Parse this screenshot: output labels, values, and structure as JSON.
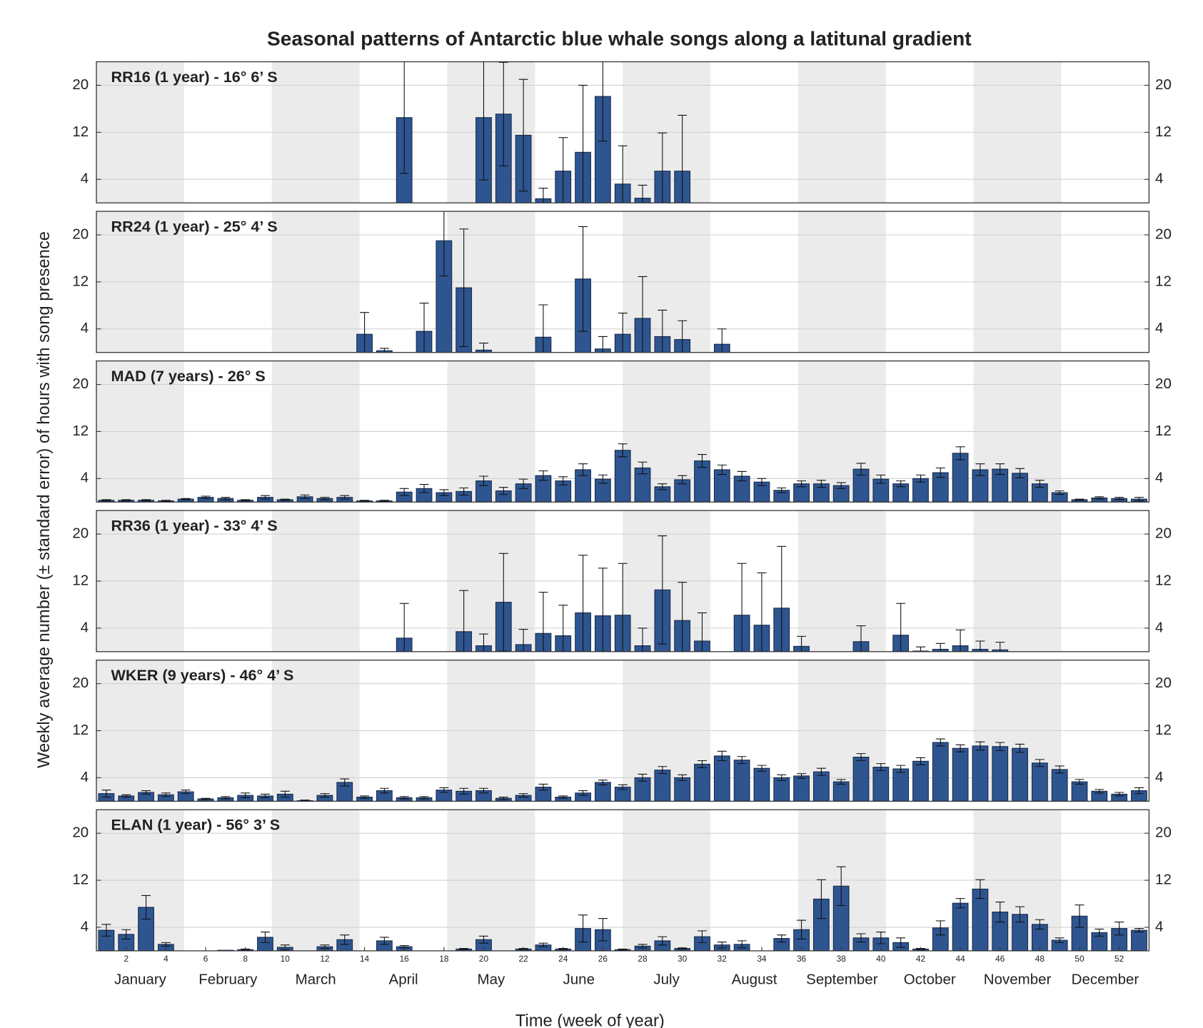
{
  "chart_data": {
    "type": "bar",
    "title": "Seasonal patterns of Antarctic blue whale songs along a latitunal gradient",
    "xlabel": "Time (week of year)",
    "ylabel": "Weekly average number (± standard error) of hours with song presence",
    "x": [
      1,
      2,
      3,
      4,
      5,
      6,
      7,
      8,
      9,
      10,
      11,
      12,
      13,
      14,
      15,
      16,
      17,
      18,
      19,
      20,
      21,
      22,
      23,
      24,
      25,
      26,
      27,
      28,
      29,
      30,
      31,
      32,
      33,
      34,
      35,
      36,
      37,
      38,
      39,
      40,
      41,
      42,
      43,
      44,
      45,
      46,
      47,
      48,
      49,
      50,
      51,
      52,
      53
    ],
    "xlim": [
      0.5,
      53.5
    ],
    "xticks": [
      2,
      4,
      6,
      8,
      10,
      12,
      14,
      16,
      18,
      20,
      22,
      24,
      26,
      28,
      30,
      32,
      34,
      36,
      38,
      40,
      42,
      44,
      46,
      48,
      50,
      52
    ],
    "months": [
      "January",
      "February",
      "March",
      "April",
      "May",
      "June",
      "July",
      "August",
      "September",
      "October",
      "November",
      "December"
    ],
    "ylim": [
      0,
      24
    ],
    "yticks": [
      4,
      12,
      20
    ],
    "grid": true,
    "color": "#2e5590",
    "panels": [
      {
        "label": "RR16 (1 year) - 16° 6’ S",
        "values": [
          0,
          0,
          0,
          0,
          0,
          0,
          0,
          0,
          0,
          0,
          0,
          0,
          0,
          0,
          0,
          14.5,
          0,
          0,
          0,
          14.5,
          15.1,
          11.5,
          0.7,
          5.4,
          8.6,
          18.1,
          3.2,
          0.8,
          5.4,
          5.4,
          0,
          0,
          0,
          0,
          0,
          0,
          0,
          0,
          0,
          0,
          0,
          0,
          0,
          0,
          0,
          0,
          0,
          0,
          0,
          0,
          0,
          0,
          0
        ],
        "errors": [
          0,
          0,
          0,
          0,
          0,
          0,
          0,
          0,
          0,
          0,
          0,
          0,
          0,
          0,
          0,
          9.5,
          0,
          0,
          0,
          10.6,
          8.8,
          9.5,
          1.8,
          5.7,
          11.4,
          7.6,
          6.5,
          2.2,
          6.5,
          9.5,
          0,
          0,
          0,
          0,
          0,
          0,
          0,
          0,
          0,
          0,
          0,
          0,
          0,
          0,
          0,
          0,
          0,
          0,
          0,
          0,
          0,
          0,
          0
        ]
      },
      {
        "label": "RR24 (1 year) - 25° 4’ S",
        "values": [
          0,
          0,
          0,
          0,
          0,
          0,
          0,
          0,
          0,
          0,
          0,
          0,
          0,
          3.1,
          0.3,
          0,
          3.6,
          19.0,
          11.0,
          0.4,
          0,
          0,
          2.6,
          0,
          12.5,
          0.6,
          3.1,
          5.8,
          2.7,
          2.2,
          0,
          1.4,
          0,
          0,
          0,
          0,
          0,
          0,
          0,
          0,
          0,
          0,
          0,
          0,
          0,
          0,
          0,
          0,
          0,
          0,
          0,
          0,
          0
        ],
        "errors": [
          0,
          0,
          0,
          0,
          0,
          0,
          0,
          0,
          0,
          0,
          0,
          0,
          0,
          3.7,
          0.4,
          0,
          4.8,
          6.0,
          10.0,
          1.2,
          0,
          0,
          5.5,
          0,
          8.9,
          2.1,
          3.6,
          7.1,
          4.5,
          3.2,
          0,
          2.6,
          0,
          0,
          0,
          0,
          0,
          0,
          0,
          0,
          0,
          0,
          0,
          0,
          0,
          0,
          0,
          0,
          0,
          0,
          0,
          0,
          0
        ]
      },
      {
        "label": "MAD (7 years) - 26° S",
        "values": [
          0.3,
          0.3,
          0.3,
          0.2,
          0.5,
          0.8,
          0.6,
          0.3,
          0.8,
          0.4,
          0.9,
          0.6,
          0.8,
          0.2,
          0.2,
          1.7,
          2.3,
          1.6,
          1.8,
          3.6,
          1.9,
          3.1,
          4.5,
          3.6,
          5.5,
          3.9,
          8.8,
          5.8,
          2.6,
          3.8,
          7.0,
          5.5,
          4.4,
          3.4,
          2.0,
          3.1,
          3.1,
          2.8,
          5.6,
          3.9,
          3.1,
          4.0,
          5.0,
          8.3,
          5.5,
          5.6,
          4.9,
          3.1,
          1.6,
          0.4,
          0.7,
          0.6,
          0.5
        ],
        "errors": [
          0.1,
          0.1,
          0.1,
          0.1,
          0.1,
          0.2,
          0.2,
          0.1,
          0.3,
          0.1,
          0.3,
          0.2,
          0.3,
          0.1,
          0.1,
          0.6,
          0.7,
          0.5,
          0.6,
          0.8,
          0.6,
          0.8,
          0.8,
          0.7,
          1.0,
          0.7,
          1.1,
          1.0,
          0.5,
          0.7,
          1.1,
          0.8,
          0.8,
          0.6,
          0.4,
          0.5,
          0.6,
          0.5,
          1.0,
          0.7,
          0.5,
          0.6,
          0.8,
          1.1,
          1.0,
          0.9,
          0.8,
          0.6,
          0.3,
          0.1,
          0.2,
          0.2,
          0.3
        ]
      },
      {
        "label": "RR36 (1 year) - 33° 4’ S",
        "values": [
          0,
          0,
          0,
          0,
          0,
          0,
          0,
          0,
          0,
          0,
          0,
          0,
          0,
          0,
          0,
          2.3,
          0,
          0,
          3.4,
          1.0,
          8.4,
          1.2,
          3.1,
          2.7,
          6.6,
          6.1,
          6.2,
          1.0,
          10.5,
          5.3,
          1.8,
          0,
          6.2,
          4.5,
          7.4,
          0.9,
          0,
          0,
          1.7,
          0,
          2.8,
          0.1,
          0.4,
          1.0,
          0.4,
          0.3,
          0,
          0,
          0,
          0,
          0,
          0,
          0
        ],
        "errors": [
          0,
          0,
          0,
          0,
          0,
          0,
          0,
          0,
          0,
          0,
          0,
          0,
          0,
          0,
          0,
          5.9,
          0,
          0,
          7.0,
          2.0,
          8.3,
          2.6,
          7.0,
          5.2,
          9.8,
          8.1,
          8.8,
          3.0,
          9.2,
          6.5,
          4.8,
          0,
          8.8,
          8.9,
          10.5,
          1.7,
          0,
          0,
          2.7,
          0,
          5.4,
          0.7,
          1.0,
          2.7,
          1.4,
          1.3,
          0,
          0,
          0,
          0,
          0,
          0,
          0
        ]
      },
      {
        "label": "WKER (9 years) - 46° 4’ S",
        "values": [
          1.3,
          0.9,
          1.5,
          1.1,
          1.6,
          0.4,
          0.6,
          1.0,
          0.9,
          1.2,
          0.1,
          1.0,
          3.2,
          0.7,
          1.8,
          0.6,
          0.6,
          1.9,
          1.7,
          1.8,
          0.5,
          1.0,
          2.4,
          0.7,
          1.4,
          3.2,
          2.4,
          4.0,
          5.3,
          4.0,
          6.3,
          7.7,
          7.0,
          5.6,
          4.0,
          4.3,
          5.0,
          3.3,
          7.5,
          5.8,
          5.5,
          6.8,
          10.0,
          9.0,
          9.4,
          9.3,
          9.0,
          6.5,
          5.4,
          3.3,
          1.7,
          1.2,
          1.8
        ],
        "errors": [
          0.6,
          0.2,
          0.3,
          0.3,
          0.3,
          0.1,
          0.2,
          0.4,
          0.3,
          0.5,
          0.1,
          0.3,
          0.6,
          0.2,
          0.4,
          0.2,
          0.2,
          0.4,
          0.5,
          0.4,
          0.2,
          0.3,
          0.5,
          0.2,
          0.4,
          0.4,
          0.4,
          0.6,
          0.6,
          0.5,
          0.6,
          0.8,
          0.6,
          0.5,
          0.5,
          0.4,
          0.6,
          0.4,
          0.6,
          0.6,
          0.6,
          0.6,
          0.6,
          0.6,
          0.7,
          0.7,
          0.7,
          0.6,
          0.6,
          0.4,
          0.3,
          0.3,
          0.5
        ]
      },
      {
        "label": "ELAN (1 year) - 56° 3’ S",
        "values": [
          3.5,
          2.8,
          7.4,
          1.1,
          0,
          0,
          0.1,
          0.2,
          2.3,
          0.6,
          0,
          0.7,
          1.9,
          0,
          1.7,
          0.7,
          0,
          0,
          0.3,
          1.9,
          0,
          0.3,
          1.0,
          0.3,
          3.8,
          3.6,
          0.2,
          0.8,
          1.7,
          0.4,
          2.4,
          1.0,
          1.1,
          0,
          2.1,
          3.6,
          8.8,
          11.0,
          2.2,
          2.2,
          1.4,
          0.3,
          3.9,
          8.1,
          10.5,
          6.6,
          6.2,
          4.5,
          1.8,
          5.9,
          3.1,
          3.8,
          3.5
        ],
        "errors": [
          1.0,
          0.8,
          2.0,
          0.3,
          0,
          0,
          0,
          0.1,
          0.9,
          0.4,
          0,
          0.3,
          0.8,
          0,
          0.6,
          0.2,
          0,
          0,
          0.1,
          0.6,
          0,
          0.1,
          0.3,
          0.1,
          2.3,
          1.9,
          0.1,
          0.3,
          0.7,
          0.1,
          1.0,
          0.5,
          0.6,
          0,
          0.6,
          1.6,
          3.3,
          3.3,
          0.7,
          1.0,
          0.8,
          0.1,
          1.2,
          0.8,
          1.6,
          1.7,
          1.3,
          0.8,
          0.4,
          1.9,
          0.6,
          1.1,
          0.3
        ]
      }
    ]
  }
}
